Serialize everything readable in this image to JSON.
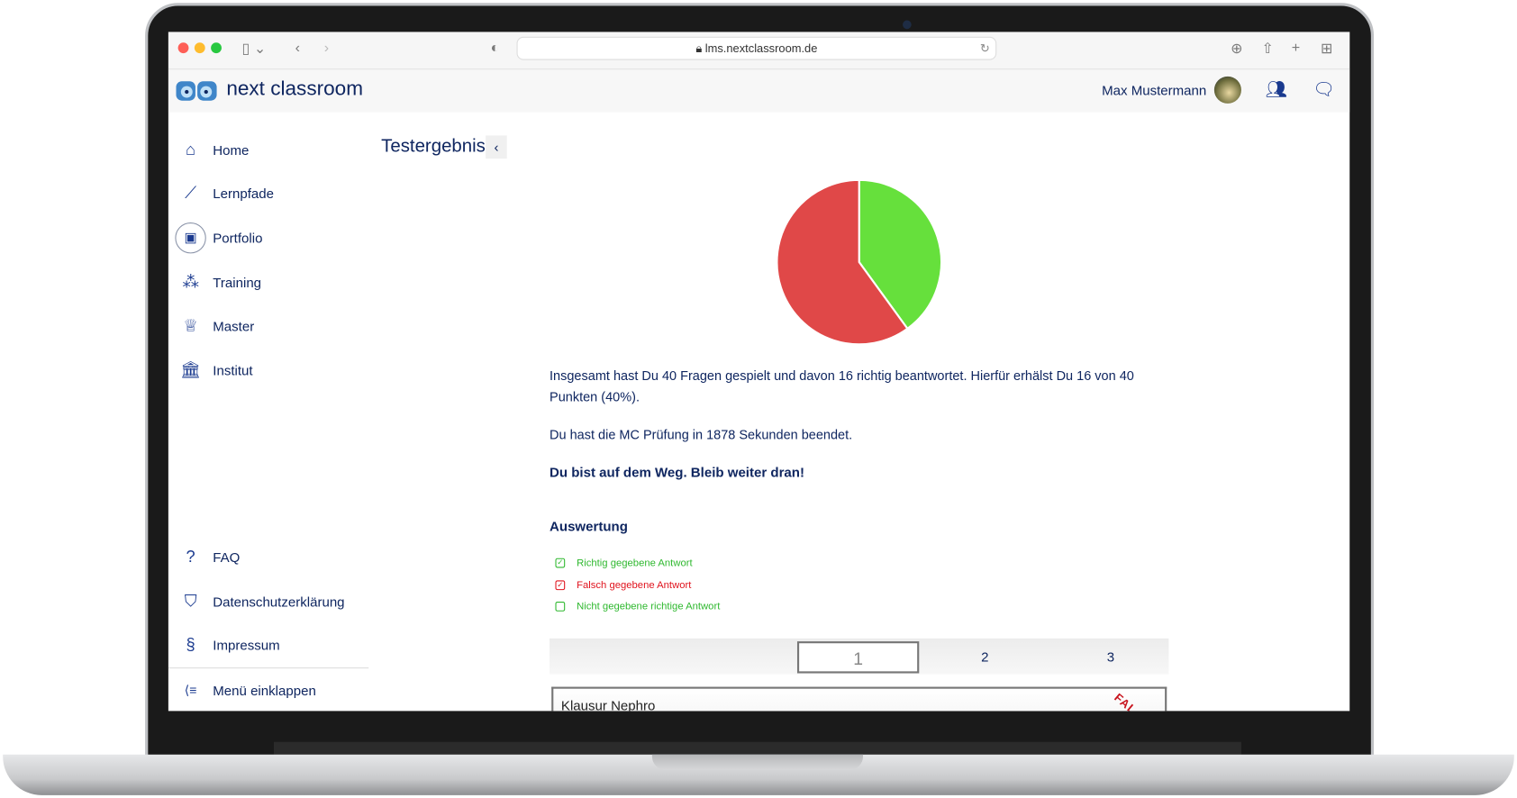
{
  "browser": {
    "url": "lms.nextclassroom.de"
  },
  "app": {
    "brand": "next classroom",
    "user_name": "Max Mustermann"
  },
  "sidebar": {
    "items": [
      {
        "label": "Home"
      },
      {
        "label": "Lernpfade"
      },
      {
        "label": "Portfolio"
      },
      {
        "label": "Training"
      },
      {
        "label": "Master"
      },
      {
        "label": "Institut"
      }
    ],
    "footer_items": [
      {
        "label": "FAQ"
      },
      {
        "label": "Datenschutzerklärung"
      },
      {
        "label": "Impressum"
      }
    ],
    "collapse_label": "Menü einklappen"
  },
  "main": {
    "title": "Testergebnis",
    "summary": "Insgesamt hast Du 40 Fragen gespielt und davon 16 richtig beantwortet. Hierfür erhälst Du 16 von 40 Punkten (40%).",
    "duration": "Du hast die MC Prüfung in 1878 Sekunden beendet.",
    "motivation": "Du bist auf dem Weg. Bleib weiter dran!",
    "section_title": "Auswertung",
    "legend": [
      {
        "label": "Richtig gegebene Antwort",
        "color": "#2eb82e"
      },
      {
        "label": "Falsch gegebene Antwort",
        "color": "#e0141e"
      },
      {
        "label": "Nicht gegebene richtige Antwort",
        "color": "#2eb82e"
      }
    ],
    "pages": [
      "1",
      "2",
      "3"
    ],
    "current_page": "1",
    "card_title": "Klausur Nephro",
    "card_stamp": "FAL"
  },
  "chart_data": {
    "type": "pie",
    "categories": [
      "richtig",
      "falsch"
    ],
    "values": [
      16,
      24
    ],
    "colors": [
      "#66e03c",
      "#e04848"
    ]
  }
}
